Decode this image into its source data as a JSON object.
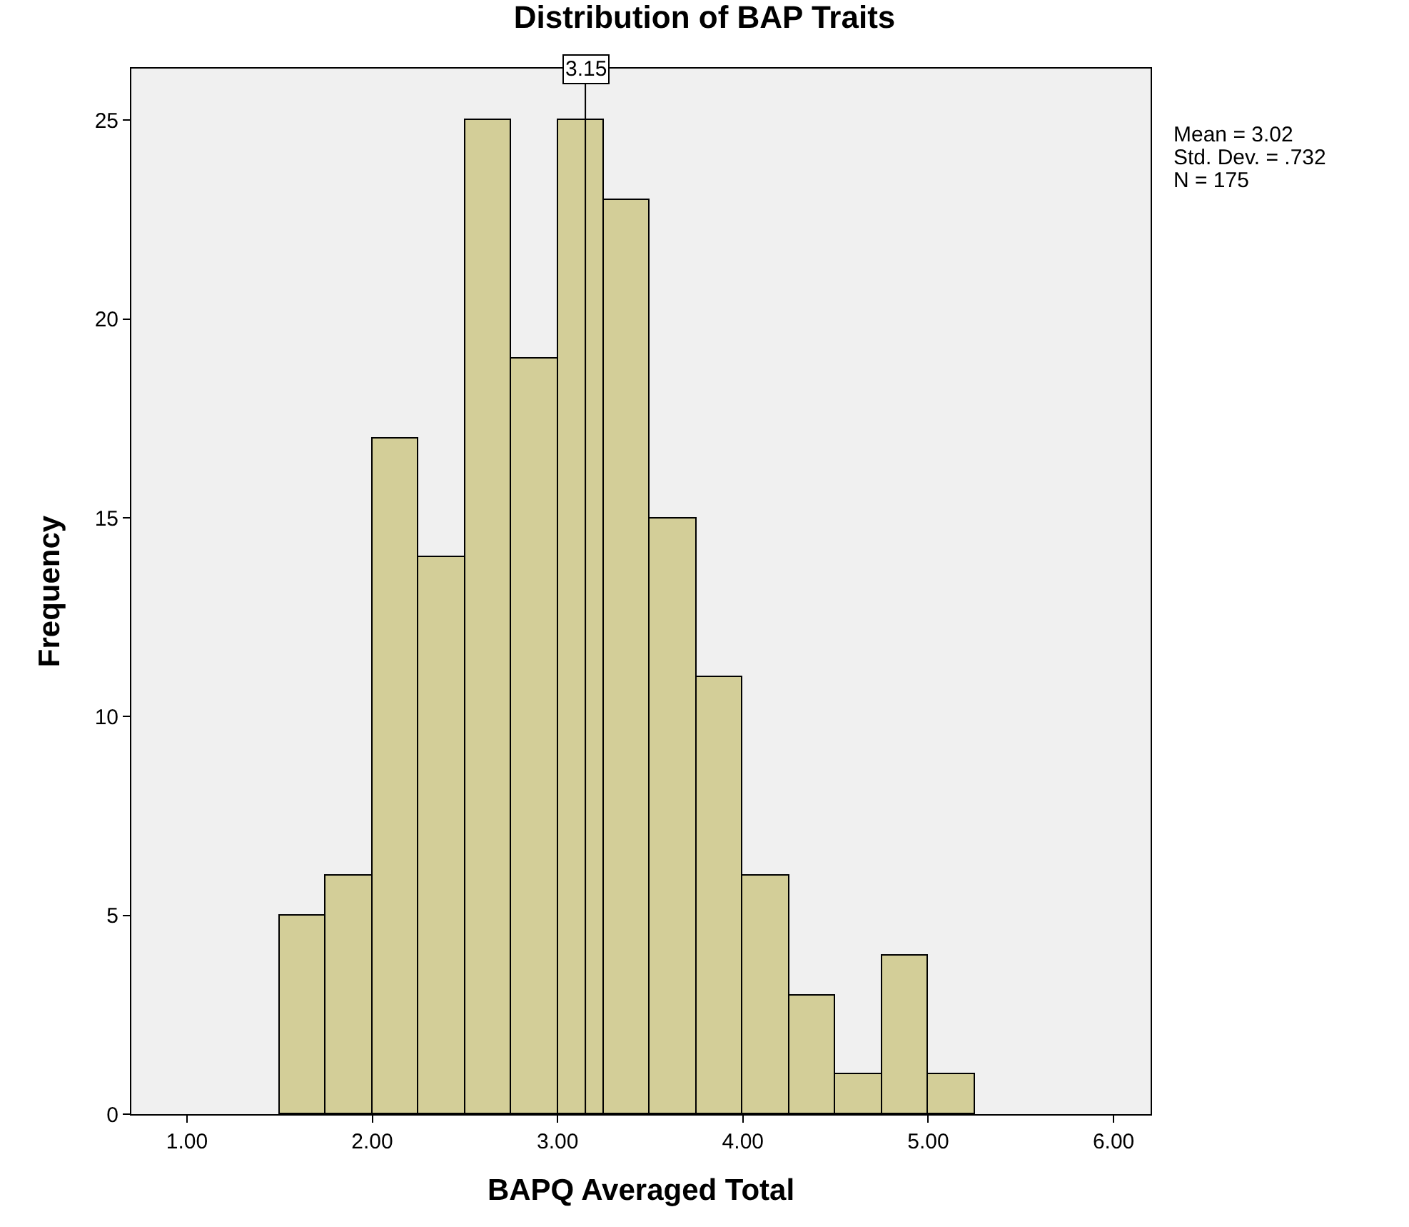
{
  "chart_data": {
    "type": "histogram",
    "title": "Distribution of BAP Traits",
    "xlabel": "BAPQ Averaged Total",
    "ylabel": "Frequency",
    "bins": [
      1.5,
      1.75,
      2.0,
      2.25,
      2.5,
      2.75,
      3.0,
      3.25,
      3.5,
      3.75,
      4.0,
      4.25,
      4.5,
      4.75,
      5.0,
      5.25
    ],
    "values": [
      5,
      6,
      17,
      14,
      25,
      19,
      25,
      23,
      15,
      11,
      6,
      3,
      1,
      4,
      1
    ],
    "color": "#d3ce98",
    "xlim": [
      0.7,
      6.2
    ],
    "ylim": [
      0,
      26.3
    ],
    "xticks": [
      {
        "value": 1,
        "label": "1.00"
      },
      {
        "value": 2,
        "label": "2.00"
      },
      {
        "value": 3,
        "label": "3.00"
      },
      {
        "value": 4,
        "label": "4.00"
      },
      {
        "value": 5,
        "label": "5.00"
      },
      {
        "value": 6,
        "label": "6.00"
      }
    ],
    "yticks": [
      0,
      5,
      10,
      15,
      20,
      25
    ],
    "grid": false,
    "ref_lines": [
      {
        "axis": "x",
        "value": 3.15,
        "label": "3.15",
        "color": "#000000"
      }
    ],
    "annotations": [
      "Mean = 3.02",
      "Std. Dev. = .732",
      "N = 175"
    ]
  }
}
